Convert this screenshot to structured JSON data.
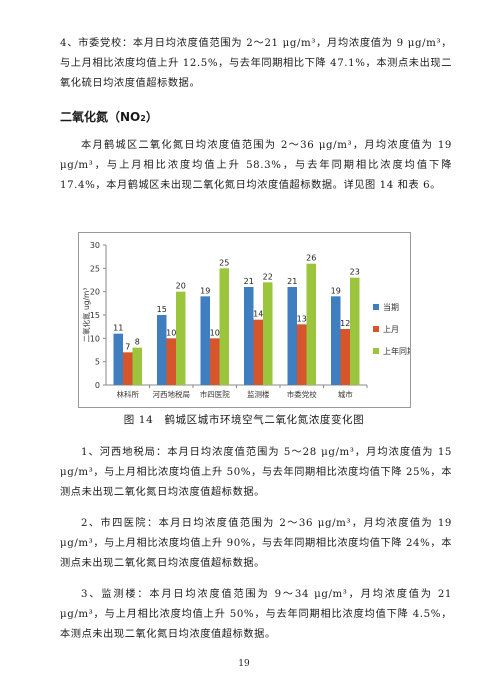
{
  "paragraphs": {
    "p_top": "4、市委党校：本月日均浓度值范围为 2～21 μg/m³，月均浓度值为 9 μg/m³，与上月相比浓度均值上升 12.5%，与去年同期相比下降 47.1%，本测点未出现二氧化硫日均浓度值超标数据。",
    "heading_main": "二氧化氮（NO",
    "heading_sub": "2",
    "heading_close": "）",
    "p_no2": "本月鹤城区二氧化氮日均浓度值范围为 2～36 μg/m³，月均浓度值为 19 μg/m³，与上月相比浓度均值上升 58.3%，与去年同期相比浓度均值下降 17.4%，本月鹤城区未出现二氧化氮日均浓度值超标数据。详见图 14 和表 6。",
    "p1": "1、河西地税局：本月日均浓度值范围为 5～28 μg/m³，月均浓度值为 15 μg/m³，与上月相比浓度均值上升 50%，与去年同期相比浓度均值下降 25%，本测点未出现二氧化氮日均浓度值超标数据。",
    "p2": "2、市四医院：本月日均浓度值范围为 2～36 μg/m³，月均浓度值为 19 μg/m³，与上月相比浓度均值上升 90%，与去年同期相比浓度均值下降 24%，本测点未出现二氧化氮日均浓度值超标数据。",
    "p3": "3、监测楼：本月日均浓度值范围为 9～34 μg/m³，月均浓度值为 21 μg/m³，与上月相比浓度均值上升 50%，与去年同期相比浓度均值下降 4.5%，本测点未出现二氧化氮日均浓度值超标数据。"
  },
  "caption": "图 14　鹤城区城市环境空气二氧化氮浓度变化图",
  "page_number": "19",
  "chart_data": {
    "type": "bar",
    "categories": [
      "林科所",
      "河西地税局",
      "市四医院",
      "监测楼",
      "市委党校",
      "城市"
    ],
    "series": [
      {
        "name": "当期",
        "values": [
          11,
          15,
          19,
          21,
          21,
          19
        ],
        "color": "#3f7ec0"
      },
      {
        "name": "上月",
        "values": [
          7,
          10,
          10,
          14,
          13,
          12
        ],
        "color": "#d6552a"
      },
      {
        "name": "上年同期",
        "values": [
          8,
          20,
          25,
          22,
          26,
          23
        ],
        "color": "#9bc53d"
      }
    ],
    "ylabel": "二氧化氮 ug/m³",
    "ylim": [
      0,
      30
    ],
    "yticks": [
      0,
      5,
      10,
      15,
      20,
      25,
      30
    ],
    "grid": false,
    "legend_position": "right"
  }
}
